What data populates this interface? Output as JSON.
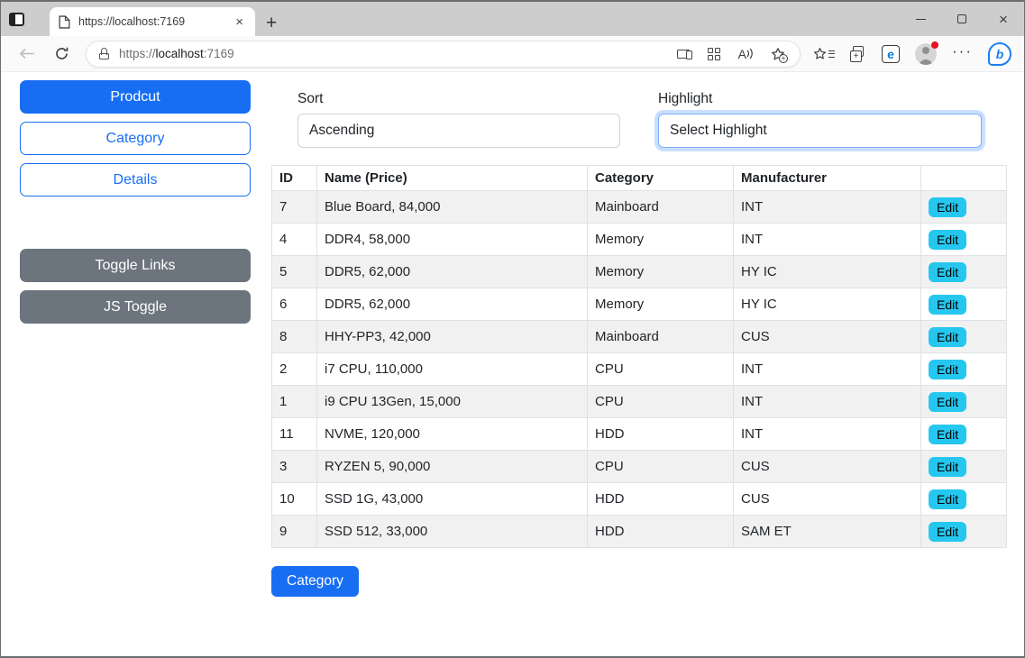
{
  "browser": {
    "tab_title": "https://localhost:7169",
    "url": {
      "scheme": "https://",
      "host": "localhost",
      "port": ":7169"
    },
    "icons": {
      "tab_close": "×",
      "new_tab": "+",
      "window_close": "×",
      "read_aloud_letter": "A",
      "ie_mode_letter": "e",
      "bing_letter": "b",
      "more_dots": "···",
      "collections_plus": "+",
      "favorite_add_plus": "+"
    }
  },
  "sidebar": {
    "buttons": [
      {
        "name": "product-button",
        "label": "Prodcut",
        "variant": "primary",
        "group": "nav"
      },
      {
        "name": "category-button",
        "label": "Category",
        "variant": "outline",
        "group": "nav"
      },
      {
        "name": "details-button",
        "label": "Details",
        "variant": "outline",
        "group": "nav"
      },
      {
        "name": "toggle-links-button",
        "label": "Toggle Links",
        "variant": "secondary",
        "group": "toggle"
      },
      {
        "name": "js-toggle-button",
        "label": "JS Toggle",
        "variant": "secondary",
        "group": "toggle"
      }
    ]
  },
  "controls": {
    "sort": {
      "label": "Sort",
      "value": "Ascending"
    },
    "highlight": {
      "label": "Highlight",
      "value": "Select Highlight"
    }
  },
  "table": {
    "headers": [
      "ID",
      "Name (Price)",
      "Category",
      "Manufacturer",
      ""
    ],
    "edit_label": "Edit",
    "rows": [
      {
        "id": "7",
        "name_price": "Blue Board, 84,000",
        "category": "Mainboard",
        "manufacturer": "INT"
      },
      {
        "id": "4",
        "name_price": "DDR4, 58,000",
        "category": "Memory",
        "manufacturer": "INT"
      },
      {
        "id": "5",
        "name_price": "DDR5, 62,000",
        "category": "Memory",
        "manufacturer": "HY IC"
      },
      {
        "id": "6",
        "name_price": "DDR5, 62,000",
        "category": "Memory",
        "manufacturer": "HY IC"
      },
      {
        "id": "8",
        "name_price": "HHY-PP3, 42,000",
        "category": "Mainboard",
        "manufacturer": "CUS"
      },
      {
        "id": "2",
        "name_price": "i7 CPU, 110,000",
        "category": "CPU",
        "manufacturer": "INT"
      },
      {
        "id": "1",
        "name_price": "i9 CPU 13Gen, 15,000",
        "category": "CPU",
        "manufacturer": "INT"
      },
      {
        "id": "11",
        "name_price": "NVME, 120,000",
        "category": "HDD",
        "manufacturer": "INT"
      },
      {
        "id": "3",
        "name_price": "RYZEN 5, 90,000",
        "category": "CPU",
        "manufacturer": "CUS"
      },
      {
        "id": "10",
        "name_price": "SSD 1G, 43,000",
        "category": "HDD",
        "manufacturer": "CUS"
      },
      {
        "id": "9",
        "name_price": "SSD 512, 33,000",
        "category": "HDD",
        "manufacturer": "SAM ET"
      }
    ]
  },
  "footer": {
    "category_button_label": "Category"
  },
  "colors": {
    "primary": "#186ef3",
    "secondary": "#6c757d",
    "edit_info": "#25c7ef",
    "row_stripe": "#f1f1f1",
    "focus_ring_border": "#79aef7",
    "profile_alert_dot": "#e81123"
  }
}
